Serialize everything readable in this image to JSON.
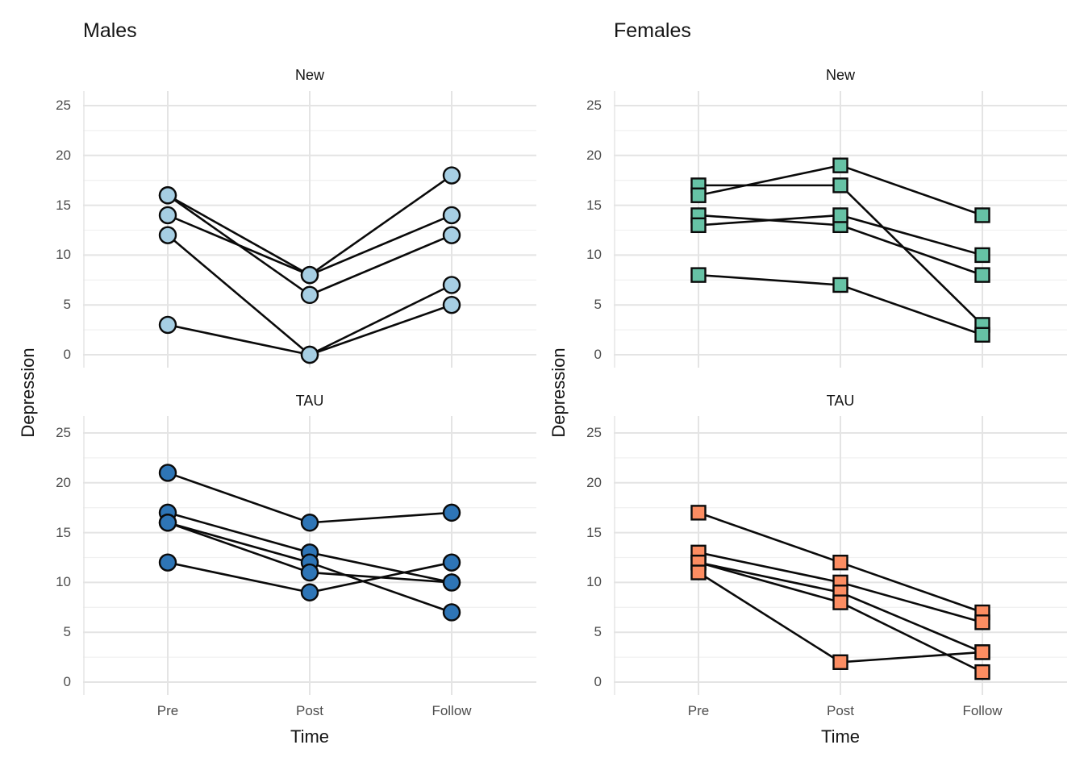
{
  "chart_data": {
    "type": "line",
    "titles": [
      "Males",
      "Females"
    ],
    "facet_labels": [
      "New",
      "TAU"
    ],
    "xlabel": "Time",
    "ylabel": "Depression",
    "x_categories": [
      "Pre",
      "Post",
      "Follow"
    ],
    "y_ticks": [
      0,
      5,
      10,
      15,
      20,
      25
    ],
    "y_minor_ticks": [
      2.5,
      7.5,
      12.5,
      17.5,
      22.5
    ],
    "ylim": [
      0,
      25
    ],
    "grid": true,
    "legend": "none",
    "facets": [
      {
        "plot": "Males",
        "treatment": "New",
        "marker": "circle",
        "fill": "#a6cee3",
        "subjects": [
          [
            16,
            8,
            18
          ],
          [
            14,
            8,
            14
          ],
          [
            16,
            6,
            12
          ],
          [
            12,
            0,
            7
          ],
          [
            3,
            0,
            5
          ]
        ]
      },
      {
        "plot": "Males",
        "treatment": "TAU",
        "marker": "circle",
        "fill": "#2e75b6",
        "subjects": [
          [
            21,
            16,
            17
          ],
          [
            17,
            13,
            10
          ],
          [
            16,
            12,
            7
          ],
          [
            16,
            11,
            10
          ],
          [
            12,
            9,
            12
          ]
        ]
      },
      {
        "plot": "Females",
        "treatment": "New",
        "marker": "square",
        "fill": "#66c2a5",
        "subjects": [
          [
            17,
            17,
            3
          ],
          [
            16,
            19,
            14
          ],
          [
            14,
            13,
            8
          ],
          [
            13,
            14,
            10
          ],
          [
            8,
            7,
            2
          ]
        ]
      },
      {
        "plot": "Females",
        "treatment": "TAU",
        "marker": "square",
        "fill": "#fc8d62",
        "subjects": [
          [
            17,
            12,
            7
          ],
          [
            13,
            10,
            6
          ],
          [
            12,
            9,
            3
          ],
          [
            12,
            8,
            1
          ],
          [
            11,
            2,
            3
          ]
        ]
      }
    ],
    "line_color": "#0a0a0a",
    "marker_stroke": "#0a0a0a",
    "colors": {
      "grid_major": "#e4e4e4",
      "grid_minor": "#f1f1f1",
      "tick_text": "#4d4d4d",
      "title_text": "#141414",
      "background": "#ffffff"
    }
  }
}
